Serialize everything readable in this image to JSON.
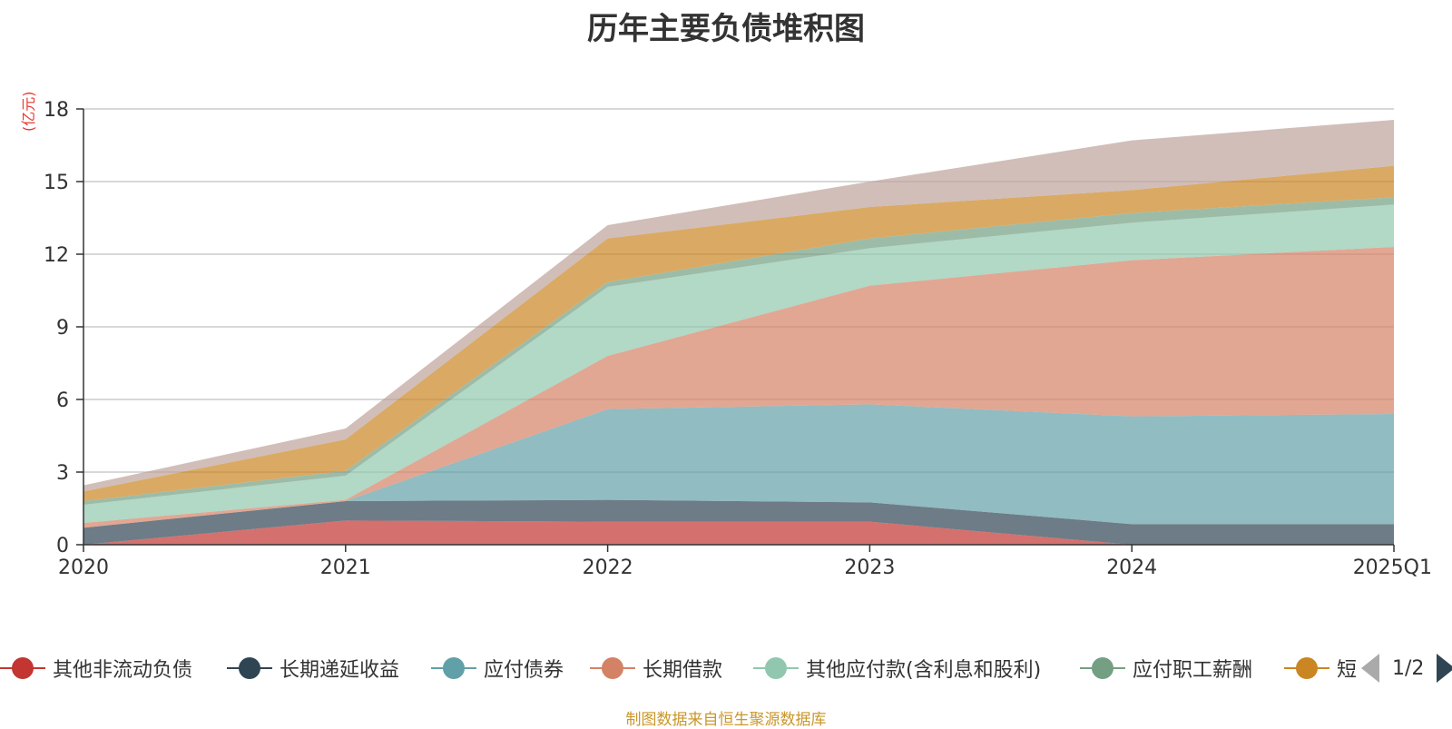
{
  "chart_data": {
    "type": "area",
    "title": "历年主要负债堆积图",
    "y_unit": "(亿元)",
    "categories": [
      "2020",
      "2021",
      "2022",
      "2023",
      "2024",
      "2025Q1"
    ],
    "ylim": [
      0,
      18
    ],
    "yticks": [
      0,
      3,
      6,
      9,
      12,
      15,
      18
    ],
    "grid": true,
    "stacked": true,
    "series": [
      {
        "name": "其他非流动负债",
        "color": "#c23531",
        "values": [
          0.0,
          1.0,
          0.95,
          0.95,
          0.0,
          0.0
        ]
      },
      {
        "name": "长期递延收益",
        "color": "#2f4554",
        "values": [
          0.7,
          0.8,
          0.9,
          0.8,
          0.85,
          0.85
        ]
      },
      {
        "name": "应付债券",
        "color": "#61a0a8",
        "values": [
          0.0,
          0.0,
          3.75,
          4.05,
          4.45,
          4.55
        ]
      },
      {
        "name": "长期借款",
        "color": "#d48265",
        "values": [
          0.2,
          0.05,
          2.2,
          4.9,
          6.45,
          6.9
        ]
      },
      {
        "name": "其他应付款(含利息和股利)",
        "color": "#91c7ae",
        "values": [
          0.75,
          1.0,
          2.85,
          1.55,
          1.55,
          1.75
        ]
      },
      {
        "name": "应付职工薪酬",
        "color": "#749f83",
        "values": [
          0.15,
          0.2,
          0.2,
          0.4,
          0.4,
          0.3
        ]
      },
      {
        "name": "",
        "color": "#ca8622",
        "values": [
          0.4,
          1.3,
          1.8,
          1.3,
          0.95,
          1.3
        ]
      },
      {
        "name": "",
        "color": "#bda29a",
        "values": [
          0.25,
          0.45,
          0.55,
          1.05,
          2.05,
          1.9
        ]
      }
    ],
    "legend_position": "bottom",
    "legend_page": "1/2",
    "legend_truncated_label": "短"
  },
  "footer": "制图数据来自恒生聚源数据库"
}
